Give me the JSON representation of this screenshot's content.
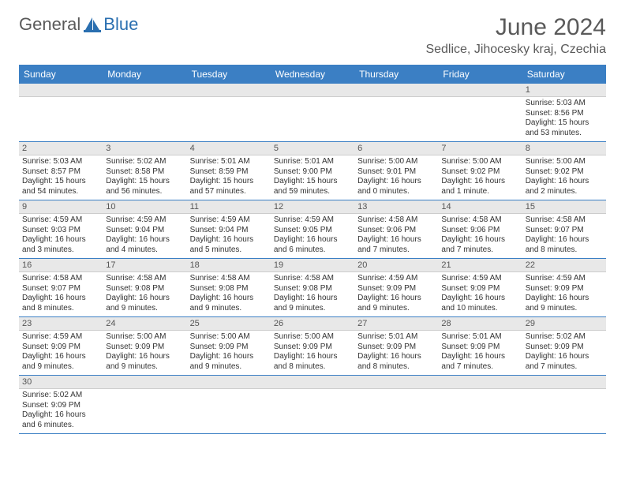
{
  "brand": {
    "part1": "General",
    "part2": "Blue"
  },
  "colors": {
    "header_bg": "#3b7fc4",
    "header_text": "#ffffff",
    "daynum_bg": "#e8e8e8",
    "row_border": "#3b7fc4",
    "text": "#333333",
    "title_text": "#5a5a5a",
    "logo_accent": "#2a6fb0"
  },
  "title": "June 2024",
  "location": "Sedlice, Jihocesky kraj, Czechia",
  "weekdays": [
    "Sunday",
    "Monday",
    "Tuesday",
    "Wednesday",
    "Thursday",
    "Friday",
    "Saturday"
  ],
  "weeks": [
    [
      null,
      null,
      null,
      null,
      null,
      null,
      {
        "n": "1",
        "sunrise": "5:03 AM",
        "sunset": "8:56 PM",
        "daylight": "15 hours and 53 minutes."
      }
    ],
    [
      {
        "n": "2",
        "sunrise": "5:03 AM",
        "sunset": "8:57 PM",
        "daylight": "15 hours and 54 minutes."
      },
      {
        "n": "3",
        "sunrise": "5:02 AM",
        "sunset": "8:58 PM",
        "daylight": "15 hours and 56 minutes."
      },
      {
        "n": "4",
        "sunrise": "5:01 AM",
        "sunset": "8:59 PM",
        "daylight": "15 hours and 57 minutes."
      },
      {
        "n": "5",
        "sunrise": "5:01 AM",
        "sunset": "9:00 PM",
        "daylight": "15 hours and 59 minutes."
      },
      {
        "n": "6",
        "sunrise": "5:00 AM",
        "sunset": "9:01 PM",
        "daylight": "16 hours and 0 minutes."
      },
      {
        "n": "7",
        "sunrise": "5:00 AM",
        "sunset": "9:02 PM",
        "daylight": "16 hours and 1 minute."
      },
      {
        "n": "8",
        "sunrise": "5:00 AM",
        "sunset": "9:02 PM",
        "daylight": "16 hours and 2 minutes."
      }
    ],
    [
      {
        "n": "9",
        "sunrise": "4:59 AM",
        "sunset": "9:03 PM",
        "daylight": "16 hours and 3 minutes."
      },
      {
        "n": "10",
        "sunrise": "4:59 AM",
        "sunset": "9:04 PM",
        "daylight": "16 hours and 4 minutes."
      },
      {
        "n": "11",
        "sunrise": "4:59 AM",
        "sunset": "9:04 PM",
        "daylight": "16 hours and 5 minutes."
      },
      {
        "n": "12",
        "sunrise": "4:59 AM",
        "sunset": "9:05 PM",
        "daylight": "16 hours and 6 minutes."
      },
      {
        "n": "13",
        "sunrise": "4:58 AM",
        "sunset": "9:06 PM",
        "daylight": "16 hours and 7 minutes."
      },
      {
        "n": "14",
        "sunrise": "4:58 AM",
        "sunset": "9:06 PM",
        "daylight": "16 hours and 7 minutes."
      },
      {
        "n": "15",
        "sunrise": "4:58 AM",
        "sunset": "9:07 PM",
        "daylight": "16 hours and 8 minutes."
      }
    ],
    [
      {
        "n": "16",
        "sunrise": "4:58 AM",
        "sunset": "9:07 PM",
        "daylight": "16 hours and 8 minutes."
      },
      {
        "n": "17",
        "sunrise": "4:58 AM",
        "sunset": "9:08 PM",
        "daylight": "16 hours and 9 minutes."
      },
      {
        "n": "18",
        "sunrise": "4:58 AM",
        "sunset": "9:08 PM",
        "daylight": "16 hours and 9 minutes."
      },
      {
        "n": "19",
        "sunrise": "4:58 AM",
        "sunset": "9:08 PM",
        "daylight": "16 hours and 9 minutes."
      },
      {
        "n": "20",
        "sunrise": "4:59 AM",
        "sunset": "9:09 PM",
        "daylight": "16 hours and 9 minutes."
      },
      {
        "n": "21",
        "sunrise": "4:59 AM",
        "sunset": "9:09 PM",
        "daylight": "16 hours and 10 minutes."
      },
      {
        "n": "22",
        "sunrise": "4:59 AM",
        "sunset": "9:09 PM",
        "daylight": "16 hours and 9 minutes."
      }
    ],
    [
      {
        "n": "23",
        "sunrise": "4:59 AM",
        "sunset": "9:09 PM",
        "daylight": "16 hours and 9 minutes."
      },
      {
        "n": "24",
        "sunrise": "5:00 AM",
        "sunset": "9:09 PM",
        "daylight": "16 hours and 9 minutes."
      },
      {
        "n": "25",
        "sunrise": "5:00 AM",
        "sunset": "9:09 PM",
        "daylight": "16 hours and 9 minutes."
      },
      {
        "n": "26",
        "sunrise": "5:00 AM",
        "sunset": "9:09 PM",
        "daylight": "16 hours and 8 minutes."
      },
      {
        "n": "27",
        "sunrise": "5:01 AM",
        "sunset": "9:09 PM",
        "daylight": "16 hours and 8 minutes."
      },
      {
        "n": "28",
        "sunrise": "5:01 AM",
        "sunset": "9:09 PM",
        "daylight": "16 hours and 7 minutes."
      },
      {
        "n": "29",
        "sunrise": "5:02 AM",
        "sunset": "9:09 PM",
        "daylight": "16 hours and 7 minutes."
      }
    ],
    [
      {
        "n": "30",
        "sunrise": "5:02 AM",
        "sunset": "9:09 PM",
        "daylight": "16 hours and 6 minutes."
      },
      null,
      null,
      null,
      null,
      null,
      null
    ]
  ],
  "labels": {
    "sunrise": "Sunrise: ",
    "sunset": "Sunset: ",
    "daylight": "Daylight: "
  }
}
